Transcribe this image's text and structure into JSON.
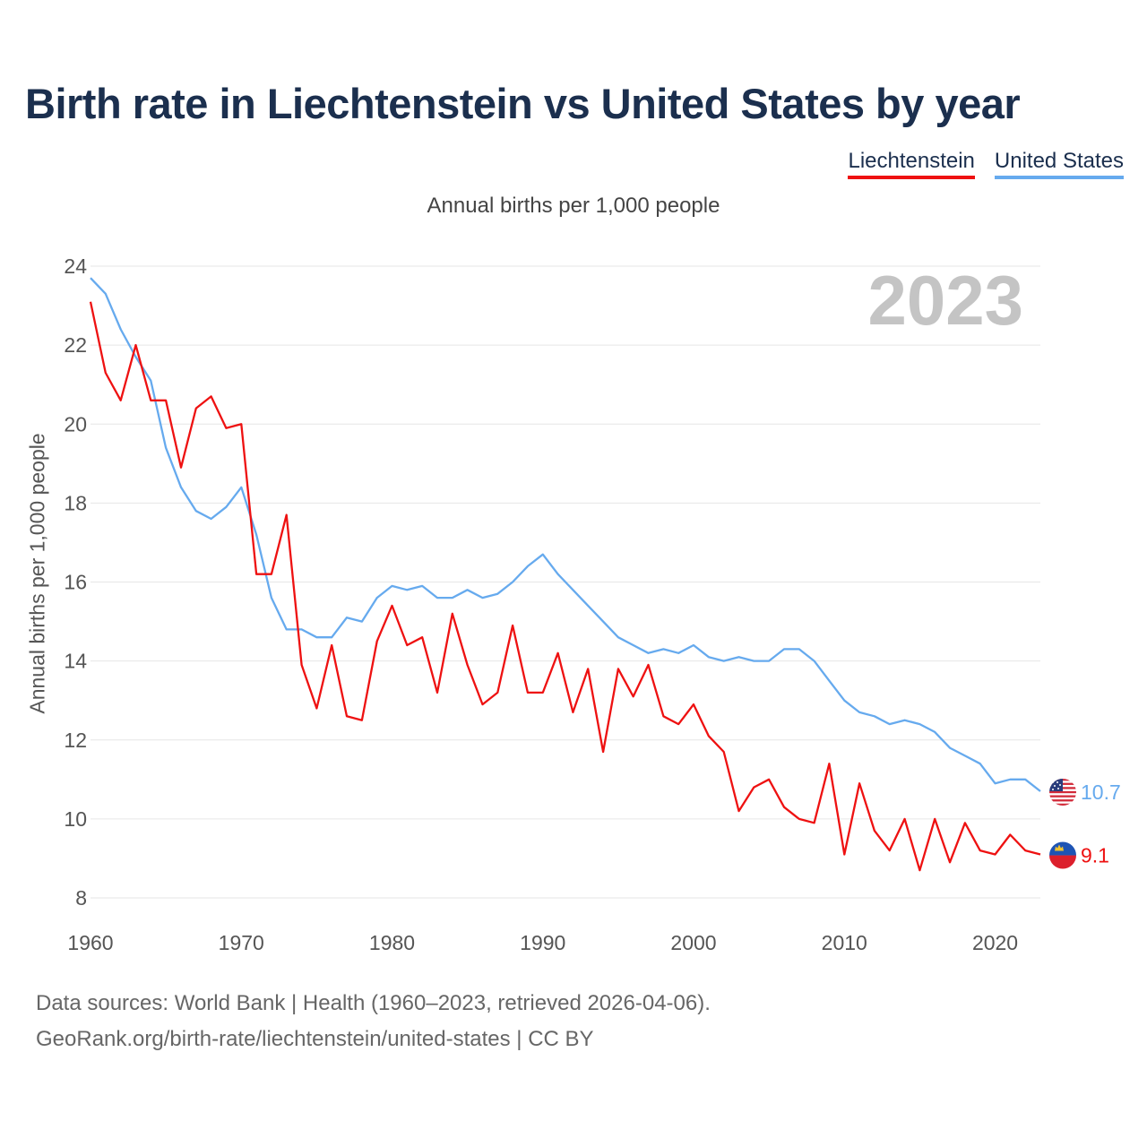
{
  "title": "Birth rate in Liechtenstein vs United States by year",
  "legend": [
    {
      "label": "Liechtenstein",
      "color": "#ee1111"
    },
    {
      "label": "United States",
      "color": "#66aaee"
    }
  ],
  "subtitle": "Annual births per 1,000 people",
  "year_label": "2023",
  "source": {
    "line1": "Data sources: World Bank | Health (1960–2023, retrieved 2026-04-06).",
    "line2": "GeoRank.org/birth-rate/liechtenstein/united-states | CC BY"
  },
  "chart_data": {
    "type": "line",
    "title": "Birth rate in Liechtenstein vs United States by year",
    "xlabel": "",
    "ylabel": "Annual births per 1,000 people",
    "xlim": [
      1960,
      2023
    ],
    "ylim": [
      8,
      24
    ],
    "x_ticks": [
      1960,
      1970,
      1980,
      1990,
      2000,
      2010,
      2020
    ],
    "y_ticks": [
      8,
      10,
      12,
      14,
      16,
      18,
      20,
      22,
      24
    ],
    "grid": true,
    "x": [
      1960,
      1961,
      1962,
      1963,
      1964,
      1965,
      1966,
      1967,
      1968,
      1969,
      1970,
      1971,
      1972,
      1973,
      1974,
      1975,
      1976,
      1977,
      1978,
      1979,
      1980,
      1981,
      1982,
      1983,
      1984,
      1985,
      1986,
      1987,
      1988,
      1989,
      1990,
      1991,
      1992,
      1993,
      1994,
      1995,
      1996,
      1997,
      1998,
      1999,
      2000,
      2001,
      2002,
      2003,
      2004,
      2005,
      2006,
      2007,
      2008,
      2009,
      2010,
      2011,
      2012,
      2013,
      2014,
      2015,
      2016,
      2017,
      2018,
      2019,
      2020,
      2021,
      2022,
      2023
    ],
    "series": [
      {
        "name": "Liechtenstein",
        "color": "#ee1111",
        "end_label": "9.1",
        "values": [
          23.1,
          21.3,
          20.6,
          22.0,
          20.6,
          20.6,
          18.9,
          20.4,
          20.7,
          19.9,
          20.0,
          16.2,
          16.2,
          17.7,
          13.9,
          12.8,
          14.4,
          12.6,
          12.5,
          14.5,
          15.4,
          14.4,
          14.6,
          13.2,
          15.2,
          13.9,
          12.9,
          13.2,
          14.9,
          13.2,
          13.2,
          14.2,
          12.7,
          13.8,
          11.7,
          13.8,
          13.1,
          13.9,
          12.6,
          12.4,
          12.9,
          12.1,
          11.7,
          10.2,
          10.8,
          11.0,
          10.3,
          10.0,
          9.9,
          11.4,
          9.1,
          10.9,
          9.7,
          9.2,
          10.0,
          8.7,
          10.0,
          8.9,
          9.9,
          9.2,
          9.1,
          9.6,
          9.2,
          9.1
        ]
      },
      {
        "name": "United States",
        "color": "#66aaee",
        "end_label": "10.7",
        "values": [
          23.7,
          23.3,
          22.4,
          21.7,
          21.1,
          19.4,
          18.4,
          17.8,
          17.6,
          17.9,
          18.4,
          17.2,
          15.6,
          14.8,
          14.8,
          14.6,
          14.6,
          15.1,
          15.0,
          15.6,
          15.9,
          15.8,
          15.9,
          15.6,
          15.6,
          15.8,
          15.6,
          15.7,
          16.0,
          16.4,
          16.7,
          16.2,
          15.8,
          15.4,
          15.0,
          14.6,
          14.4,
          14.2,
          14.3,
          14.2,
          14.4,
          14.1,
          14.0,
          14.1,
          14.0,
          14.0,
          14.3,
          14.3,
          14.0,
          13.5,
          13.0,
          12.7,
          12.6,
          12.4,
          12.5,
          12.4,
          12.2,
          11.8,
          11.6,
          11.4,
          10.9,
          11.0,
          11.0,
          10.7
        ]
      }
    ]
  }
}
